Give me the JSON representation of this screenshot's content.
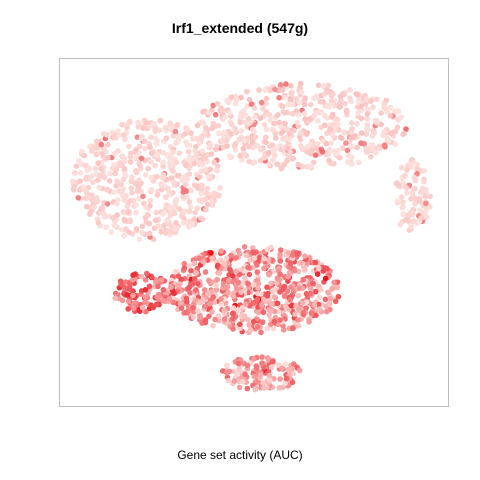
{
  "chart_data": {
    "type": "scatter",
    "title": "Irf1_extended (547g)",
    "caption": "Gene set activity (AUC)",
    "xlabel": "",
    "ylabel": "",
    "axes_visible": false,
    "grid": false,
    "legend": "none",
    "colors": {
      "low": "#fde0dc",
      "high": "#e8141e",
      "frame": "#bfbfbf"
    },
    "xlim": [
      0,
      100
    ],
    "ylim": [
      0,
      100
    ],
    "clusters": [
      {
        "name": "upper-right",
        "cx": 63,
        "cy": 82,
        "rx": 28,
        "ry": 13,
        "n": 520,
        "activity": 0.06,
        "jitter": 0.1
      },
      {
        "name": "upper-left",
        "cx": 22,
        "cy": 66,
        "rx": 20,
        "ry": 18,
        "n": 520,
        "activity": 0.05,
        "jitter": 0.08
      },
      {
        "name": "right-arm",
        "cx": 92,
        "cy": 61,
        "rx": 5,
        "ry": 11,
        "n": 90,
        "activity": 0.05,
        "jitter": 0.06
      },
      {
        "name": "center-low",
        "cx": 50,
        "cy": 33,
        "rx": 23,
        "ry": 13,
        "n": 650,
        "activity": 0.38,
        "jitter": 0.35
      },
      {
        "name": "left-small",
        "cx": 21,
        "cy": 32,
        "rx": 8,
        "ry": 6,
        "n": 110,
        "activity": 0.55,
        "jitter": 0.35
      },
      {
        "name": "bottom",
        "cx": 52,
        "cy": 8,
        "rx": 11,
        "ry": 5,
        "n": 120,
        "activity": 0.32,
        "jitter": 0.3
      }
    ]
  }
}
